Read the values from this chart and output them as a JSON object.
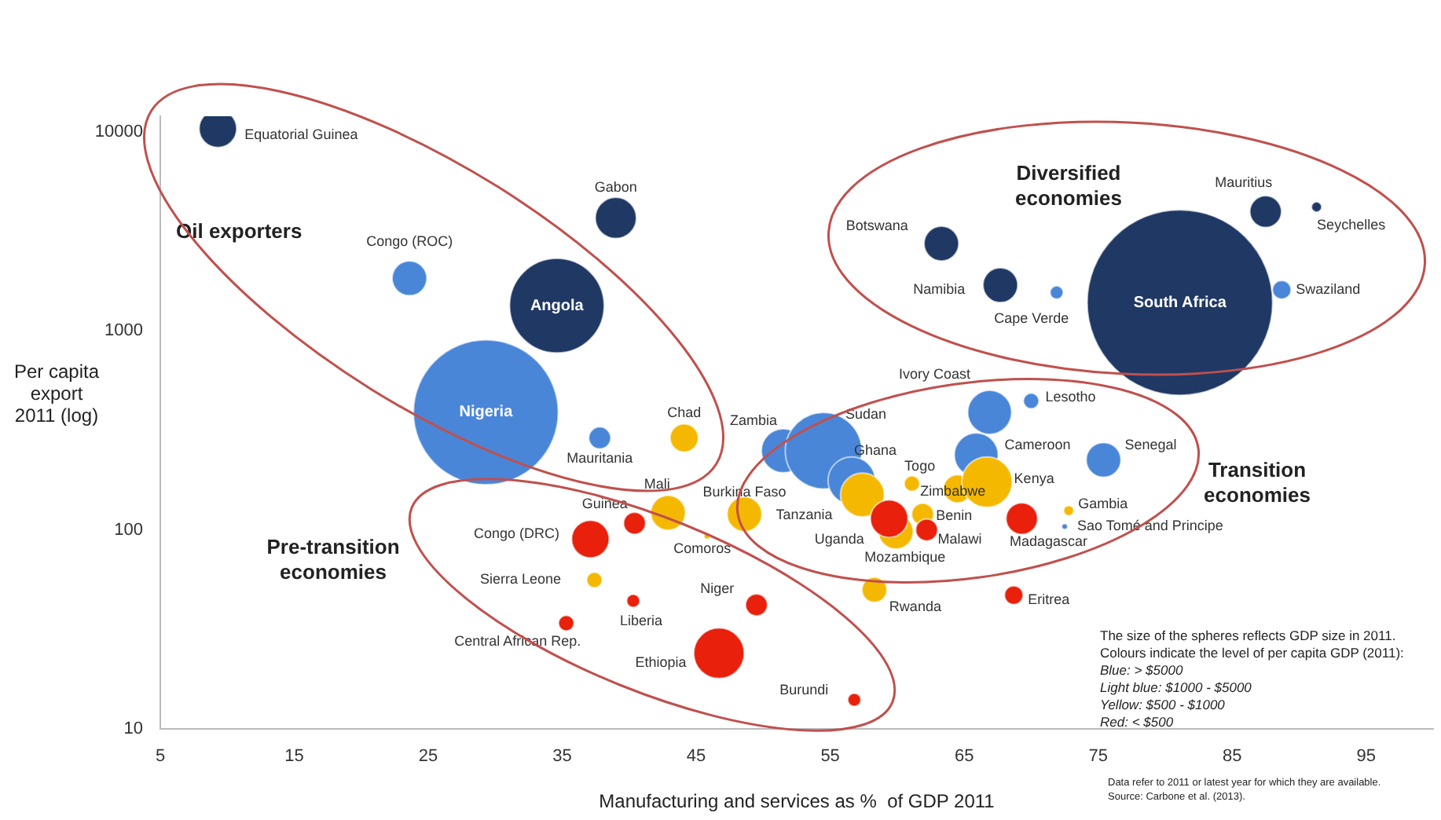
{
  "chart_data": {
    "type": "bubble",
    "xlabel": "Manufacturing and services as %  of GDP 2011",
    "ylabel": "Per capita export 2011 (log)",
    "log": "y",
    "xlim": [
      5,
      100
    ],
    "xticks": [
      5,
      15,
      25,
      35,
      45,
      55,
      65,
      75,
      85,
      95
    ],
    "ylim": [
      10,
      12000
    ],
    "yticks": [
      10,
      100,
      1000,
      10000
    ],
    "legend": false,
    "series": [
      {
        "color": "#1f3864",
        "x": [
          9.3,
          39.0,
          34.6,
          63.3,
          67.7,
          81.1,
          87.5,
          91.3
        ],
        "values": [
          10400,
          3700,
          1340,
          2750,
          1700,
          1390,
          3980,
          4200
        ],
        "sizes": [
          0.041,
          0.049,
          0.26,
          0.035,
          0.035,
          1,
          0.029,
          0.003
        ]
      },
      {
        "color": "#4a86d8",
        "x": [
          23.6,
          29.3,
          37.8,
          51.5,
          54.5,
          56.6,
          65.9,
          66.9,
          70.0,
          75.4,
          72.5,
          71.9,
          88.7
        ],
        "values": [
          1840,
          390,
          290,
          250,
          250,
          177,
          238,
          390,
          445,
          225,
          104,
          1560,
          1610
        ],
        "sizes": [
          0.035,
          0.61,
          0.014,
          0.056,
          0.17,
          0.065,
          0.056,
          0.056,
          0.007,
          0.035,
          0.001,
          0.005,
          0.01
        ]
      },
      {
        "color": "#f5b800",
        "x": [
          44.1,
          57.4,
          59.9,
          61.1,
          64.5,
          66.7,
          61.9,
          72.8,
          58.3,
          42.9,
          48.6,
          45.8,
          37.4
        ],
        "values": [
          290,
          150,
          98,
          171,
          161,
          174,
          120,
          125,
          50,
          122,
          120,
          93,
          56
        ],
        "sizes": [
          0.023,
          0.056,
          0.035,
          0.007,
          0.023,
          0.074,
          0.014,
          0.003,
          0.018,
          0.035,
          0.035,
          0.001,
          0.007
        ]
      },
      {
        "color": "#e8200c",
        "x": [
          59.4,
          62.2,
          69.3,
          68.7,
          56.8,
          40.4,
          37.1,
          40.3,
          49.5,
          35.3,
          46.7
        ],
        "values": [
          114,
          100,
          114,
          47,
          14,
          108,
          90,
          44,
          42,
          34,
          24
        ],
        "sizes": [
          0.041,
          0.014,
          0.029,
          0.01,
          0.005,
          0.014,
          0.041,
          0.005,
          0.014,
          0.007,
          0.074
        ]
      }
    ],
    "annotations": [
      {
        "text": "Equatorial Guinea",
        "x": 9.3,
        "y": 10400
      },
      {
        "text": "Gabon",
        "x": 39.0,
        "y": 3700
      },
      {
        "text": "Angola",
        "x": 34.6,
        "y": 1340
      },
      {
        "text": "Botswana",
        "x": 63.3,
        "y": 2750
      },
      {
        "text": "Namibia",
        "x": 67.7,
        "y": 1700
      },
      {
        "text": "South Africa",
        "x": 81.1,
        "y": 1390
      },
      {
        "text": "Mauritius",
        "x": 87.5,
        "y": 3980
      },
      {
        "text": "Seychelles",
        "x": 91.3,
        "y": 4200
      },
      {
        "text": "Congo (ROC)",
        "x": 23.6,
        "y": 1840
      },
      {
        "text": "Nigeria",
        "x": 29.3,
        "y": 390
      },
      {
        "text": "Mauritania",
        "x": 37.8,
        "y": 290
      },
      {
        "text": "Zambia",
        "x": 51.5,
        "y": 250
      },
      {
        "text": "Sudan",
        "x": 54.5,
        "y": 250
      },
      {
        "text": "Ghana",
        "x": 56.6,
        "y": 177
      },
      {
        "text": "Cameroon",
        "x": 65.9,
        "y": 238
      },
      {
        "text": "Ivory Coast",
        "x": 66.9,
        "y": 390
      },
      {
        "text": "Lesotho",
        "x": 70.0,
        "y": 445
      },
      {
        "text": "Senegal",
        "x": 75.4,
        "y": 225
      },
      {
        "text": "Sao Tomé and Principe",
        "x": 72.5,
        "y": 104
      },
      {
        "text": "Cape Verde",
        "x": 71.9,
        "y": 1560
      },
      {
        "text": "Swaziland",
        "x": 88.7,
        "y": 1610
      },
      {
        "text": "Chad",
        "x": 44.1,
        "y": 290
      },
      {
        "text": "Tanzania",
        "x": 57.4,
        "y": 150
      },
      {
        "text": "Uganda",
        "x": 59.9,
        "y": 98
      },
      {
        "text": "Togo",
        "x": 61.1,
        "y": 171
      },
      {
        "text": "Zimbabwe",
        "x": 64.5,
        "y": 161
      },
      {
        "text": "Kenya",
        "x": 66.7,
        "y": 174
      },
      {
        "text": "Benin",
        "x": 61.9,
        "y": 120
      },
      {
        "text": "Gambia",
        "x": 72.8,
        "y": 125
      },
      {
        "text": "Rwanda",
        "x": 58.3,
        "y": 50
      },
      {
        "text": "Mali",
        "x": 42.9,
        "y": 122
      },
      {
        "text": "Burkina Faso",
        "x": 48.6,
        "y": 120
      },
      {
        "text": "Comoros",
        "x": 45.8,
        "y": 93
      },
      {
        "text": "Sierra Leone",
        "x": 37.4,
        "y": 56
      },
      {
        "text": "Mozambique",
        "x": 59.4,
        "y": 114
      },
      {
        "text": "Malawi",
        "x": 62.2,
        "y": 100
      },
      {
        "text": "Madagascar",
        "x": 69.3,
        "y": 114
      },
      {
        "text": "Eritrea",
        "x": 68.7,
        "y": 47
      },
      {
        "text": "Burundi",
        "x": 56.8,
        "y": 14
      },
      {
        "text": "Guinea",
        "x": 40.4,
        "y": 108
      },
      {
        "text": "Congo (DRC)",
        "x": 37.1,
        "y": 90
      },
      {
        "text": "Liberia",
        "x": 40.3,
        "y": 44
      },
      {
        "text": "Niger",
        "x": 49.5,
        "y": 42
      },
      {
        "text": "Central African Rep.",
        "x": 35.3,
        "y": 34
      },
      {
        "text": "Ethiopia",
        "x": 46.7,
        "y": 24
      },
      "Oil exporters",
      "Diversified economies",
      "Transition economies",
      "Pre-transition economies",
      "The size of the spheres reflects GDP size in 2011.",
      "Colours indicate the level of per capita GDP (2011):",
      "Blue: > $5000",
      "Light blue: $1000 - $5000",
      "Yellow: $500 - $1000",
      "Red: < $500",
      "Data refer to 2011 or latest year for which they are available.",
      "Source: Carbone et al. (2013)."
    ]
  }
}
